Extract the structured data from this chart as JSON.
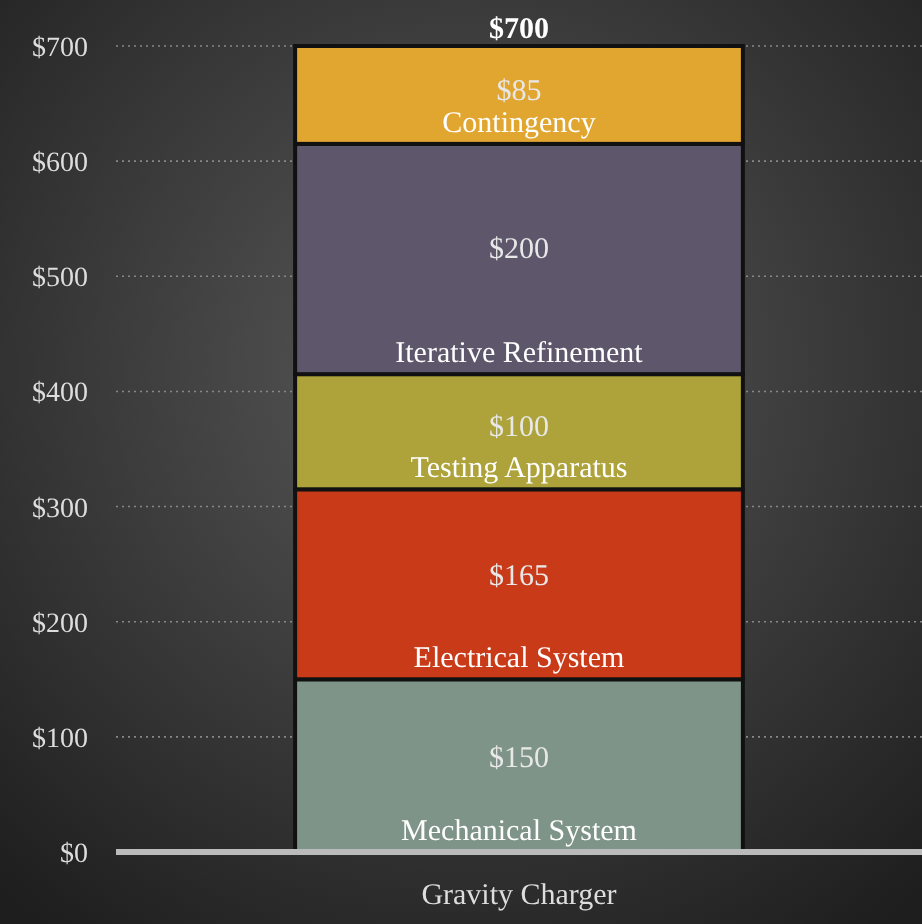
{
  "chart_data": {
    "type": "bar",
    "stacked": true,
    "categories": [
      "Gravity Charger"
    ],
    "series": [
      {
        "name": "Mechanical System",
        "color": "#7f9488",
        "values": [
          150
        ],
        "value_labels": [
          "$150"
        ]
      },
      {
        "name": "Electrical System",
        "color": "#c83a18",
        "values": [
          165
        ],
        "value_labels": [
          "$165"
        ]
      },
      {
        "name": "Testing Apparatus",
        "color": "#aea33a",
        "values": [
          100
        ],
        "value_labels": [
          "$100"
        ]
      },
      {
        "name": "Iterative Refinement",
        "color": "#5e566b",
        "values": [
          200
        ],
        "value_labels": [
          "$200"
        ]
      },
      {
        "name": "Contingency",
        "color": "#e0a630",
        "values": [
          85
        ],
        "value_labels": [
          "$85"
        ]
      }
    ],
    "totals": [
      "$700"
    ],
    "ylim": [
      0,
      700
    ],
    "yticks": [
      {
        "value": 0,
        "label": "$0"
      },
      {
        "value": 100,
        "label": "$100"
      },
      {
        "value": 200,
        "label": "$200"
      },
      {
        "value": 300,
        "label": "$300"
      },
      {
        "value": 400,
        "label": "$400"
      },
      {
        "value": 500,
        "label": "$500"
      },
      {
        "value": 600,
        "label": "$600"
      },
      {
        "value": 700,
        "label": "$700"
      }
    ],
    "grid": "y"
  }
}
